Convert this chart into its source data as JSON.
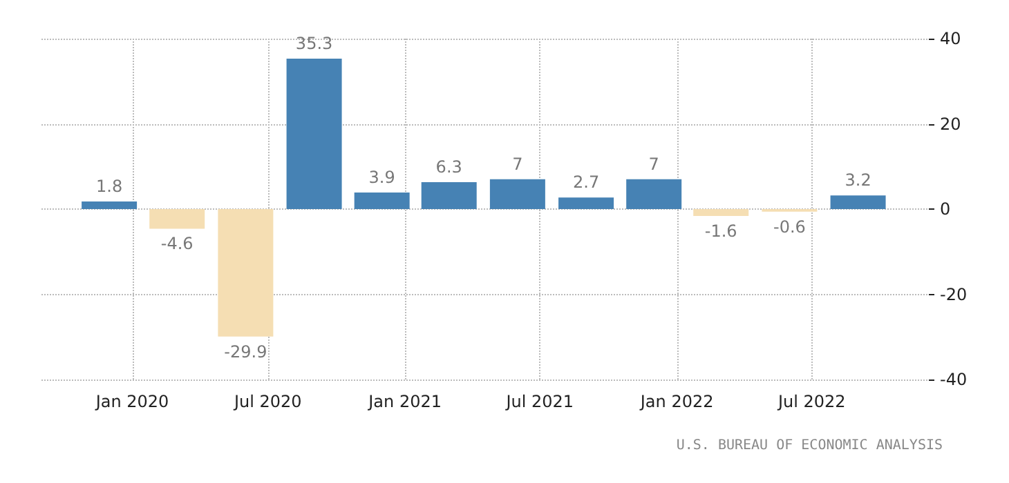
{
  "chart_data": {
    "type": "bar",
    "x": [
      "2019-12",
      "2020-03",
      "2020-06",
      "2020-09",
      "2020-12",
      "2021-03",
      "2021-06",
      "2021-09",
      "2021-12",
      "2022-03",
      "2022-06",
      "2022-09"
    ],
    "values": [
      1.8,
      -4.6,
      -29.9,
      35.3,
      3.9,
      6.3,
      7,
      2.7,
      7,
      -1.6,
      -0.6,
      3.2
    ],
    "colors": [
      "#4682b4",
      "#f5deb3",
      "#f5deb3",
      "#4682b4",
      "#4682b4",
      "#4682b4",
      "#4682b4",
      "#4682b4",
      "#4682b4",
      "#f5deb3",
      "#f5deb3",
      "#4682b4"
    ],
    "data_labels": true,
    "xlim": [
      "2019-09-01",
      "2022-12-05"
    ],
    "xticks": [
      {
        "value": "2020-01",
        "label": "Jan 2020"
      },
      {
        "value": "2020-07",
        "label": "Jul 2020"
      },
      {
        "value": "2021-01",
        "label": "Jan 2021"
      },
      {
        "value": "2021-07",
        "label": "Jul 2021"
      },
      {
        "value": "2022-01",
        "label": "Jan 2022"
      },
      {
        "value": "2022-07",
        "label": "Jul 2022"
      }
    ],
    "ylim": [
      -40,
      40
    ],
    "yticks": [
      -40,
      -20,
      0,
      20,
      40
    ],
    "grid": true,
    "annotations": [
      "U.S. BUREAU OF ECONOMIC ANALYSIS"
    ]
  }
}
